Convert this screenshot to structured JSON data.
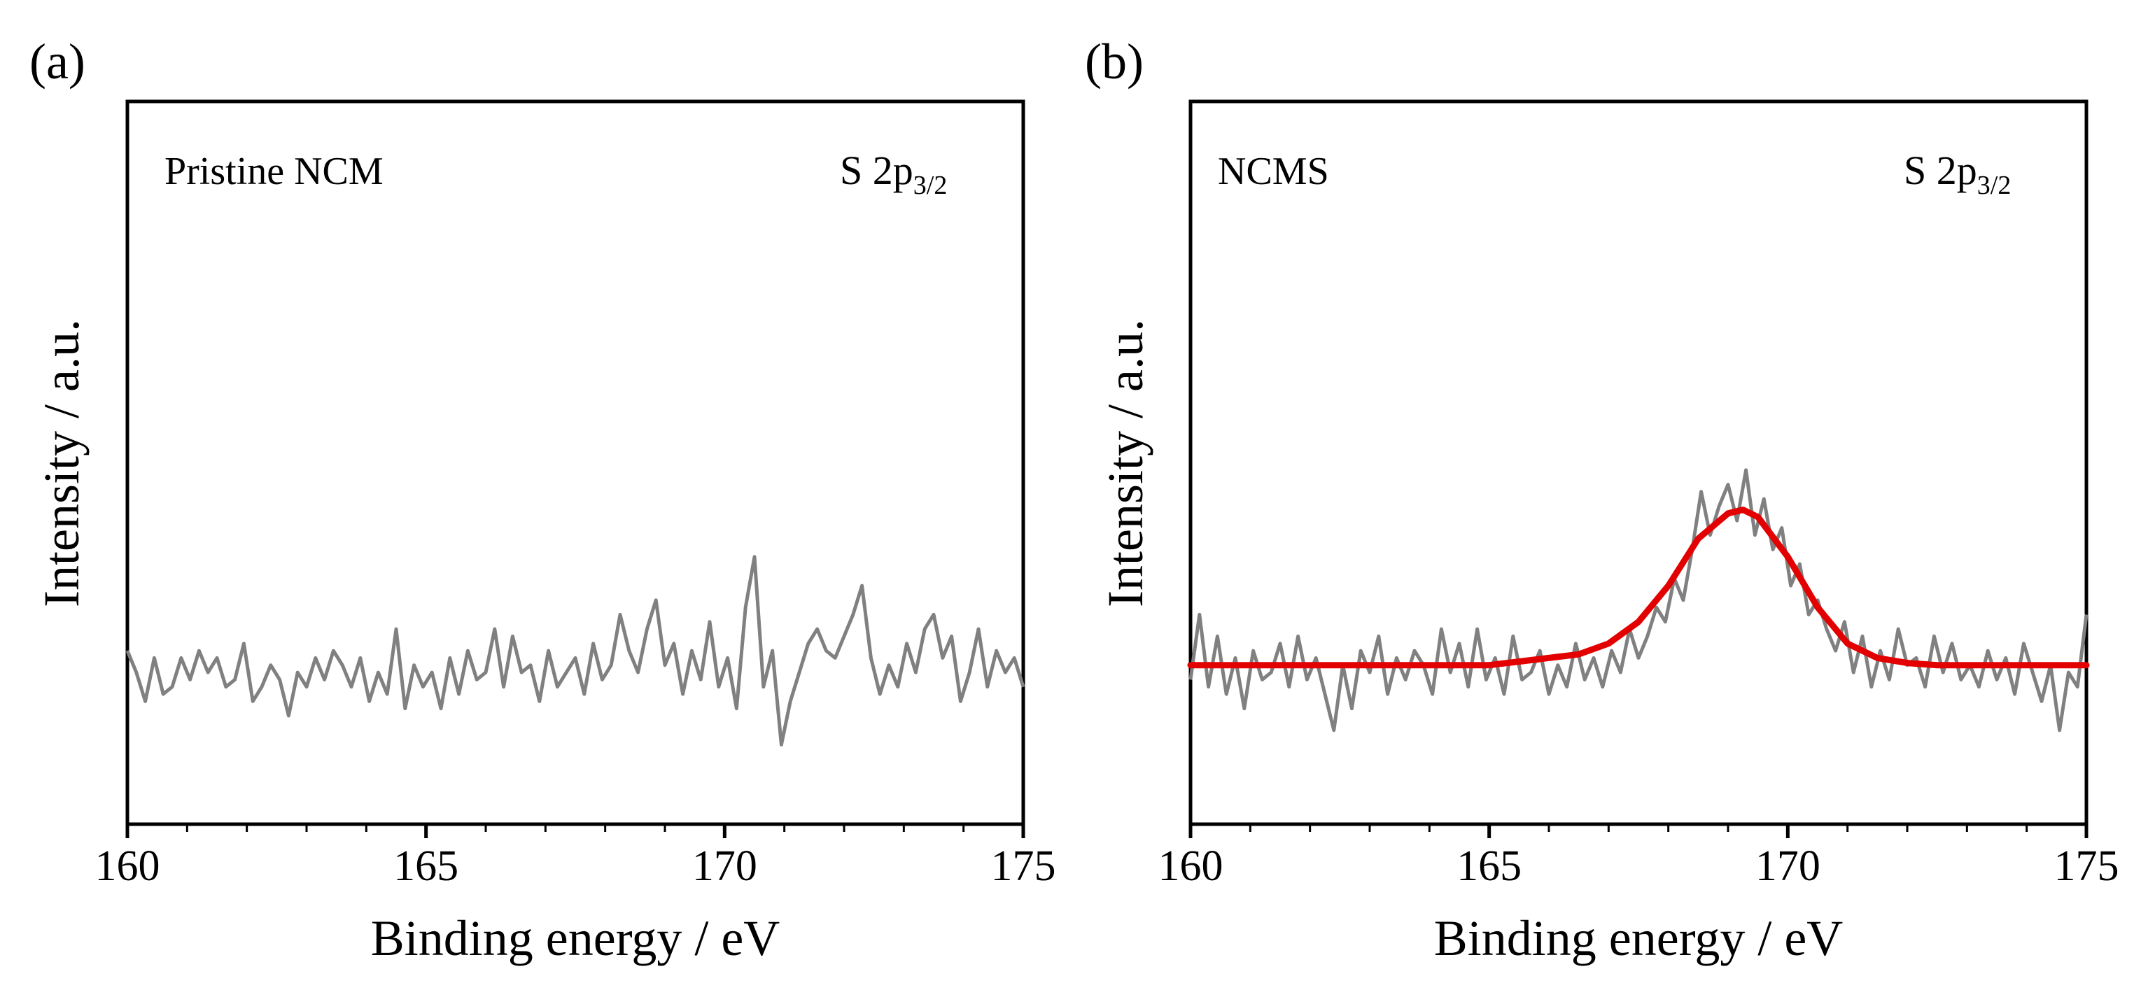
{
  "colors": {
    "raw_spectrum": "#808080",
    "fit": "#e30000",
    "axis": "#000000",
    "background": "#ffffff"
  },
  "chart_data": [
    {
      "type": "line",
      "panel_label": "(a)",
      "sample_label": "Pristine NCM",
      "region_label": "S 2p",
      "region_subscript": "3/2",
      "xlabel": "Binding energy / eV",
      "ylabel": "Intensity / a.u.",
      "xlim": [
        160,
        175
      ],
      "ylim": [
        0,
        100
      ],
      "xticks": [
        160,
        165,
        170,
        175
      ],
      "xtick_labels": [
        "160",
        "165",
        "170",
        "175"
      ],
      "yticks_shown": false,
      "grid": false,
      "series": [
        {
          "name": "measured",
          "x": [
            160.0,
            160.15,
            160.3,
            160.45,
            160.6,
            160.75,
            160.9,
            161.05,
            161.2,
            161.35,
            161.5,
            161.65,
            161.8,
            161.95,
            162.1,
            162.25,
            162.4,
            162.55,
            162.7,
            162.85,
            163.0,
            163.15,
            163.3,
            163.45,
            163.6,
            163.75,
            163.9,
            164.05,
            164.2,
            164.35,
            164.5,
            164.65,
            164.8,
            164.95,
            165.1,
            165.25,
            165.4,
            165.55,
            165.7,
            165.85,
            166.0,
            166.15,
            166.3,
            166.45,
            166.6,
            166.75,
            166.9,
            167.05,
            167.2,
            167.35,
            167.5,
            167.65,
            167.8,
            167.95,
            168.1,
            168.25,
            168.4,
            168.55,
            168.7,
            168.85,
            169.0,
            169.15,
            169.3,
            169.45,
            169.6,
            169.75,
            169.9,
            170.05,
            170.2,
            170.35,
            170.5,
            170.65,
            170.8,
            170.95,
            171.1,
            171.25,
            171.4,
            171.55,
            171.7,
            171.85,
            172.0,
            172.15,
            172.3,
            172.45,
            172.6,
            172.75,
            172.9,
            173.05,
            173.2,
            173.35,
            173.5,
            173.65,
            173.8,
            173.95,
            174.1,
            174.25,
            174.4,
            174.55,
            174.7,
            174.85,
            175.0
          ],
          "y": [
            24,
            21,
            17,
            23,
            18,
            19,
            23,
            20,
            24,
            21,
            23,
            19,
            20,
            25,
            17,
            19,
            22,
            20,
            15,
            21,
            19,
            23,
            20,
            24,
            22,
            19,
            23,
            17,
            21,
            18,
            27,
            16,
            22,
            19,
            21,
            16,
            23,
            18,
            24,
            20,
            21,
            27,
            19,
            26,
            21,
            22,
            17,
            24,
            19,
            21,
            23,
            18,
            25,
            20,
            22,
            29,
            24,
            21,
            27,
            31,
            22,
            25,
            18,
            24,
            20,
            28,
            19,
            23,
            16,
            30,
            37,
            19,
            24,
            11,
            17,
            21,
            25,
            27,
            24,
            23,
            26,
            29,
            33,
            23,
            18,
            22,
            19,
            25,
            21,
            27,
            29,
            23,
            26,
            17,
            21,
            27,
            19,
            24,
            21,
            23,
            19
          ]
        }
      ]
    },
    {
      "type": "line",
      "panel_label": "(b)",
      "sample_label": "NCMS",
      "region_label": "S 2p",
      "region_subscript": "3/2",
      "xlabel": "Binding energy / eV",
      "ylabel": "Intensity / a.u.",
      "xlim": [
        160,
        175
      ],
      "ylim": [
        0,
        100
      ],
      "xticks": [
        160,
        165,
        170,
        175
      ],
      "xtick_labels": [
        "160",
        "165",
        "170",
        "175"
      ],
      "yticks_shown": false,
      "grid": false,
      "series": [
        {
          "name": "measured",
          "x": [
            160.0,
            160.15,
            160.3,
            160.45,
            160.6,
            160.75,
            160.9,
            161.05,
            161.2,
            161.35,
            161.5,
            161.65,
            161.8,
            161.95,
            162.1,
            162.25,
            162.4,
            162.55,
            162.7,
            162.85,
            163.0,
            163.15,
            163.3,
            163.45,
            163.6,
            163.75,
            163.9,
            164.05,
            164.2,
            164.35,
            164.5,
            164.65,
            164.8,
            164.95,
            165.1,
            165.25,
            165.4,
            165.55,
            165.7,
            165.85,
            166.0,
            166.15,
            166.3,
            166.45,
            166.6,
            166.75,
            166.9,
            167.05,
            167.2,
            167.35,
            167.5,
            167.65,
            167.8,
            167.95,
            168.1,
            168.25,
            168.4,
            168.55,
            168.7,
            168.85,
            169.0,
            169.15,
            169.3,
            169.45,
            169.6,
            169.75,
            169.9,
            170.05,
            170.2,
            170.35,
            170.5,
            170.65,
            170.8,
            170.95,
            171.1,
            171.25,
            171.4,
            171.55,
            171.7,
            171.85,
            172.0,
            172.15,
            172.3,
            172.45,
            172.6,
            172.75,
            172.9,
            173.05,
            173.2,
            173.35,
            173.5,
            173.65,
            173.8,
            173.95,
            174.1,
            174.25,
            174.4,
            174.55,
            174.7,
            174.85,
            175.0
          ],
          "y": [
            20,
            29,
            19,
            26,
            18,
            23,
            16,
            24,
            20,
            21,
            25,
            19,
            26,
            20,
            23,
            18,
            13,
            22,
            16,
            24,
            21,
            26,
            18,
            23,
            20,
            24,
            22,
            18,
            27,
            21,
            25,
            19,
            27,
            20,
            23,
            18,
            26,
            20,
            21,
            24,
            18,
            22,
            19,
            25,
            20,
            23,
            19,
            24,
            21,
            27,
            23,
            26,
            30,
            28,
            34,
            31,
            38,
            46,
            40,
            44,
            47,
            42,
            49,
            40,
            45,
            38,
            41,
            33,
            36,
            29,
            31,
            27,
            24,
            28,
            21,
            26,
            19,
            24,
            20,
            27,
            22,
            23,
            19,
            26,
            21,
            25,
            20,
            22,
            19,
            24,
            20,
            23,
            18,
            25,
            21,
            17,
            22,
            13,
            21,
            19,
            29
          ]
        },
        {
          "name": "fit",
          "x": [
            160,
            161,
            162,
            163,
            164,
            165,
            165.5,
            166,
            166.5,
            167,
            167.5,
            168,
            168.5,
            169,
            169.25,
            169.5,
            170,
            170.5,
            171,
            171.5,
            172,
            172.5,
            173,
            174,
            175
          ],
          "y": [
            22,
            22,
            22,
            22,
            22,
            22,
            22.5,
            23,
            23.5,
            25,
            28,
            33,
            39.5,
            43,
            43.5,
            42.5,
            37,
            30,
            25,
            23,
            22.3,
            22,
            22,
            22,
            22
          ]
        }
      ]
    }
  ]
}
